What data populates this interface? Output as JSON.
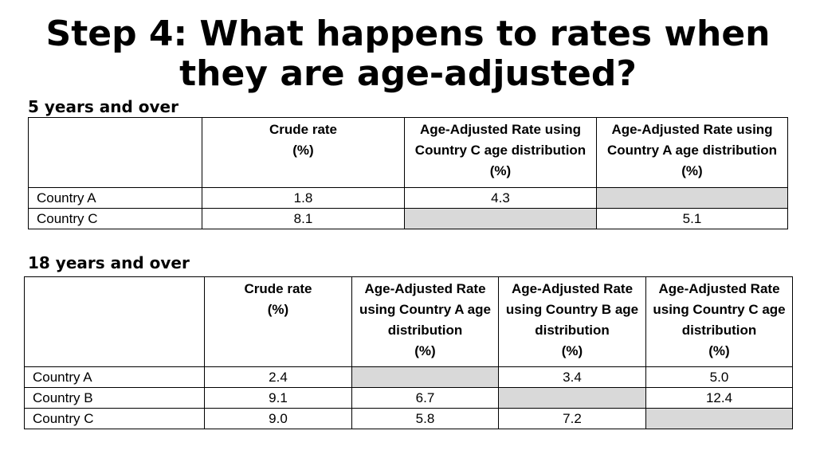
{
  "title": "Step 4: What happens to rates when they are age-adjusted?",
  "table1": {
    "label": "5 years and over",
    "headers": [
      "",
      "Crude rate\n(%)",
      "Age-Adjusted Rate using\nCountry C age distribution\n(%)",
      "Age-Adjusted Rate using\nCountry A age distribution\n(%)"
    ],
    "rows": [
      {
        "name": "Country A",
        "cells": [
          "1.8",
          "4.3",
          ""
        ]
      },
      {
        "name": "Country C",
        "cells": [
          "8.1",
          "",
          "5.1"
        ]
      }
    ],
    "shaded": [
      [
        0,
        2
      ],
      [
        1,
        1
      ]
    ],
    "shade_color": "#d9d9d9"
  },
  "table2": {
    "label": "18 years and over",
    "headers": [
      "",
      "Crude rate\n(%)",
      "Age-Adjusted Rate\nusing Country A age\ndistribution\n(%)",
      "Age-Adjusted Rate\nusing Country B age\ndistribution\n(%)",
      "Age-Adjusted Rate\nusing Country C age\ndistribution\n(%)"
    ],
    "rows": [
      {
        "name": "Country A",
        "cells": [
          "2.4",
          "",
          "3.4",
          "5.0"
        ]
      },
      {
        "name": "Country B",
        "cells": [
          "9.1",
          "6.7",
          "",
          "12.4"
        ]
      },
      {
        "name": "Country C",
        "cells": [
          "9.0",
          "5.8",
          "7.2",
          ""
        ]
      }
    ],
    "shaded": [
      [
        0,
        1
      ],
      [
        1,
        2
      ],
      [
        2,
        3
      ]
    ],
    "shade_color": "#d9d9d9"
  }
}
